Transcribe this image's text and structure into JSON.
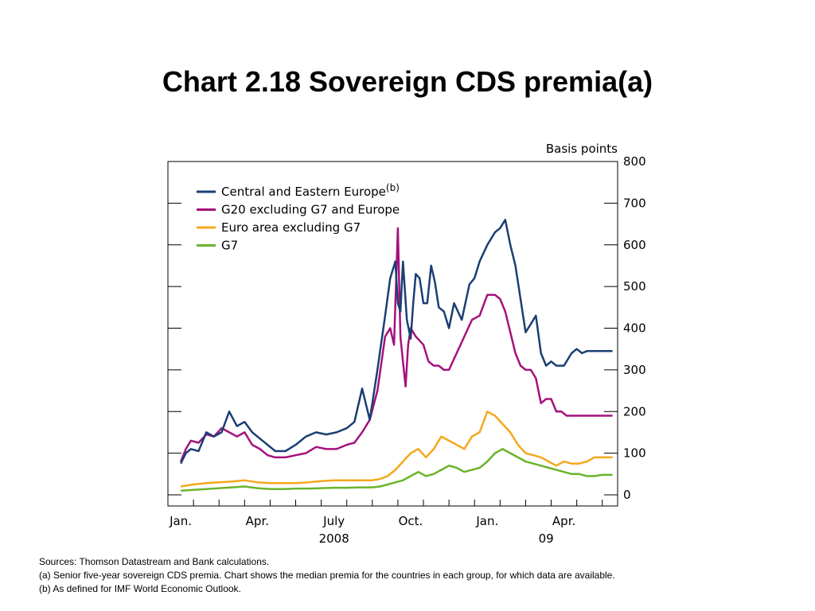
{
  "title": "Chart 2.18  Sovereign CDS premia(a)",
  "chart_data": {
    "type": "line",
    "ylabel": "Basis points",
    "ylim": [
      0,
      800
    ],
    "yticks": [
      0,
      100,
      200,
      300,
      400,
      500,
      600,
      700,
      800
    ],
    "xlim": [
      0,
      17.6
    ],
    "x_axis_labels": [
      {
        "label": "Jan.",
        "x": 0.5
      },
      {
        "label": "Apr.",
        "x": 3.5
      },
      {
        "label": "July",
        "x": 6.5
      },
      {
        "label": "Oct.",
        "x": 9.5
      },
      {
        "label": "Jan.",
        "x": 12.5
      },
      {
        "label": "Apr.",
        "x": 15.5
      }
    ],
    "year_labels": [
      {
        "label": "2008",
        "x": 6.5
      },
      {
        "label": "09",
        "x": 14.8
      }
    ],
    "legend": {
      "placement": "top-left"
    },
    "series": [
      {
        "name": "Central and Eastern Europe",
        "superscript": "(b)",
        "color": "#1b3f73",
        "x": [
          0.5,
          0.7,
          0.9,
          1.2,
          1.5,
          1.8,
          2.1,
          2.4,
          2.7,
          3.0,
          3.3,
          3.6,
          3.9,
          4.2,
          4.6,
          5.0,
          5.4,
          5.8,
          6.2,
          6.6,
          7.0,
          7.3,
          7.6,
          7.9,
          8.2,
          8.5,
          8.7,
          8.9,
          9.0,
          9.1,
          9.2,
          9.35,
          9.5,
          9.6,
          9.7,
          9.85,
          10.0,
          10.15,
          10.3,
          10.45,
          10.6,
          10.8,
          11.0,
          11.2,
          11.5,
          11.8,
          12.0,
          12.2,
          12.5,
          12.8,
          13.0,
          13.2,
          13.4,
          13.6,
          13.8,
          14.0,
          14.2,
          14.4,
          14.6,
          14.8,
          15.0,
          15.2,
          15.5,
          15.8,
          16.0,
          16.2,
          16.4,
          16.6,
          16.8,
          17.0,
          17.2,
          17.4
        ],
        "values": [
          75,
          100,
          110,
          105,
          150,
          140,
          150,
          200,
          165,
          175,
          150,
          135,
          120,
          105,
          105,
          120,
          140,
          150,
          145,
          150,
          160,
          175,
          255,
          180,
          300,
          430,
          520,
          560,
          460,
          440,
          560,
          420,
          375,
          460,
          530,
          520,
          460,
          460,
          550,
          510,
          450,
          440,
          400,
          460,
          420,
          505,
          520,
          560,
          600,
          630,
          640,
          660,
          600,
          550,
          470,
          390,
          410,
          430,
          340,
          310,
          320,
          310,
          310,
          340,
          350,
          340,
          345,
          345,
          345,
          345,
          345,
          345
        ]
      },
      {
        "name": "G20 excluding G7 and Europe",
        "superscript": "",
        "color": "#a5117d",
        "x": [
          0.5,
          0.7,
          0.9,
          1.2,
          1.5,
          1.8,
          2.1,
          2.4,
          2.7,
          3.0,
          3.3,
          3.6,
          3.9,
          4.2,
          4.6,
          5.0,
          5.4,
          5.8,
          6.2,
          6.6,
          7.0,
          7.3,
          7.6,
          7.9,
          8.2,
          8.5,
          8.7,
          8.85,
          9.0,
          9.1,
          9.2,
          9.3,
          9.4,
          9.5,
          9.6,
          9.7,
          9.85,
          10.0,
          10.2,
          10.4,
          10.6,
          10.8,
          11.0,
          11.3,
          11.6,
          11.9,
          12.2,
          12.5,
          12.8,
          13.0,
          13.2,
          13.4,
          13.6,
          13.8,
          14.0,
          14.2,
          14.4,
          14.6,
          14.8,
          15.0,
          15.2,
          15.4,
          15.6,
          15.8,
          16.0,
          16.2,
          16.4,
          16.6,
          16.8,
          17.0,
          17.2,
          17.4
        ],
        "values": [
          80,
          110,
          130,
          125,
          145,
          140,
          160,
          150,
          140,
          150,
          120,
          110,
          95,
          90,
          90,
          95,
          100,
          115,
          110,
          110,
          120,
          125,
          150,
          180,
          250,
          380,
          400,
          360,
          640,
          380,
          320,
          260,
          360,
          400,
          390,
          380,
          370,
          360,
          320,
          310,
          310,
          300,
          300,
          340,
          380,
          420,
          430,
          480,
          480,
          470,
          440,
          390,
          340,
          310,
          300,
          300,
          280,
          220,
          230,
          230,
          200,
          200,
          190,
          190,
          190,
          190,
          190,
          190,
          190,
          190,
          190,
          190
        ]
      },
      {
        "name": "Euro area excluding G7",
        "superscript": "",
        "color": "#f4a81d",
        "x": [
          0.5,
          1.0,
          1.5,
          2.0,
          2.5,
          3.0,
          3.5,
          4.0,
          4.5,
          5.0,
          5.5,
          6.0,
          6.5,
          7.0,
          7.5,
          8.0,
          8.3,
          8.6,
          8.9,
          9.2,
          9.5,
          9.8,
          10.1,
          10.4,
          10.7,
          11.0,
          11.3,
          11.6,
          11.9,
          12.2,
          12.5,
          12.8,
          13.1,
          13.4,
          13.7,
          14.0,
          14.3,
          14.6,
          14.9,
          15.2,
          15.5,
          15.8,
          16.1,
          16.4,
          16.7,
          17.0,
          17.4
        ],
        "values": [
          20,
          25,
          28,
          30,
          32,
          35,
          30,
          28,
          28,
          28,
          30,
          33,
          35,
          35,
          35,
          35,
          38,
          45,
          60,
          80,
          100,
          110,
          90,
          110,
          140,
          130,
          120,
          110,
          140,
          150,
          200,
          190,
          170,
          150,
          120,
          100,
          95,
          90,
          80,
          70,
          80,
          75,
          75,
          80,
          90,
          90,
          90
        ]
      },
      {
        "name": "G7",
        "superscript": "",
        "color": "#6ab42d",
        "x": [
          0.5,
          1.0,
          1.5,
          2.0,
          2.5,
          3.0,
          3.5,
          4.0,
          4.5,
          5.0,
          5.5,
          6.0,
          6.5,
          7.0,
          7.5,
          8.0,
          8.3,
          8.6,
          8.9,
          9.2,
          9.5,
          9.8,
          10.1,
          10.4,
          10.7,
          11.0,
          11.3,
          11.6,
          11.9,
          12.2,
          12.5,
          12.8,
          13.1,
          13.4,
          13.7,
          14.0,
          14.3,
          14.6,
          14.9,
          15.2,
          15.5,
          15.8,
          16.1,
          16.4,
          16.7,
          17.0,
          17.4
        ],
        "values": [
          10,
          12,
          14,
          16,
          18,
          20,
          16,
          14,
          14,
          15,
          15,
          16,
          17,
          17,
          18,
          18,
          20,
          25,
          30,
          35,
          45,
          55,
          45,
          50,
          60,
          70,
          65,
          55,
          60,
          65,
          80,
          100,
          110,
          100,
          90,
          80,
          75,
          70,
          65,
          60,
          55,
          50,
          50,
          45,
          45,
          48,
          48
        ]
      }
    ]
  },
  "notes": {
    "sources": "Sources:  Thomson Datastream and Bank calculations.",
    "note_a": "(a) Senior five-year sovereign CDS premia.  Chart shows the median premia for the countries in each group, for which data are available.",
    "note_b": "(b) As defined for IMF World Economic Outlook."
  }
}
